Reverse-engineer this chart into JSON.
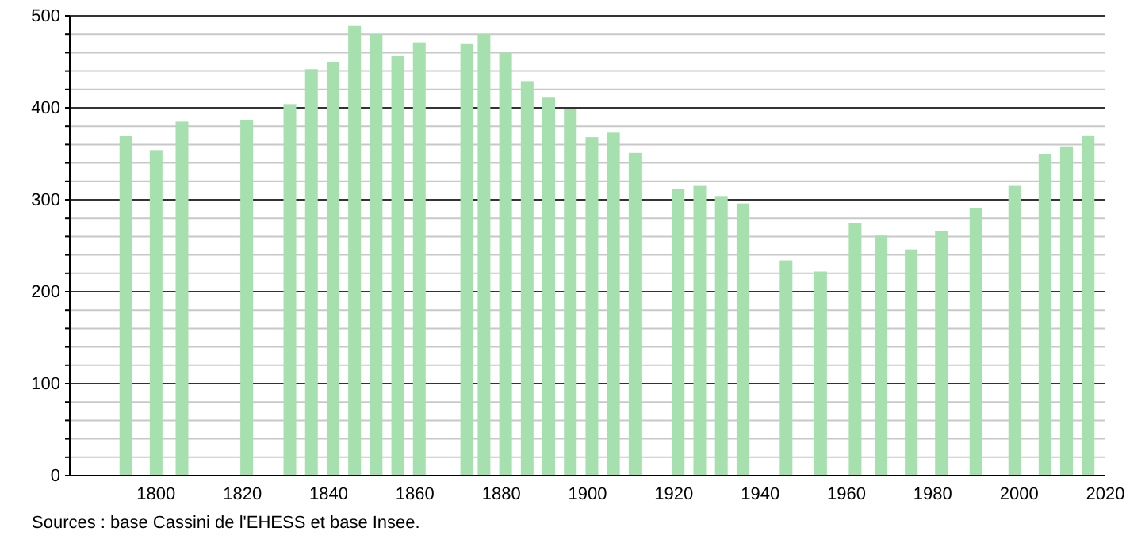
{
  "chart_data": {
    "type": "bar",
    "x": [
      1793,
      1800,
      1806,
      1821,
      1831,
      1836,
      1841,
      1846,
      1851,
      1856,
      1861,
      1872,
      1876,
      1881,
      1886,
      1891,
      1896,
      1901,
      1906,
      1911,
      1921,
      1926,
      1931,
      1936,
      1946,
      1954,
      1962,
      1968,
      1975,
      1982,
      1990,
      1999,
      2006,
      2011,
      2016
    ],
    "values": [
      369,
      354,
      385,
      387,
      404,
      442,
      450,
      489,
      480,
      456,
      471,
      470,
      480,
      460,
      429,
      411,
      399,
      368,
      373,
      351,
      312,
      315,
      304,
      296,
      234,
      222,
      275,
      261,
      246,
      266,
      291,
      315,
      350,
      358,
      370
    ],
    "color": "#a6e0ae",
    "xlim": [
      1780,
      2020
    ],
    "xticks": [
      1800,
      1820,
      1840,
      1860,
      1880,
      1900,
      1920,
      1940,
      1960,
      1980,
      2000,
      2020
    ],
    "ylim": [
      0,
      500
    ],
    "yticks": [
      0,
      {
        "value": 20,
        "label": null
      },
      {
        "value": 40,
        "label": null
      },
      {
        "value": 60,
        "label": null
      },
      {
        "value": 80,
        "label": null
      },
      100,
      {
        "value": 120,
        "label": null
      },
      {
        "value": 140,
        "label": null
      },
      {
        "value": 160,
        "label": null
      },
      {
        "value": 180,
        "label": null
      },
      200,
      {
        "value": 220,
        "label": null
      },
      {
        "value": 240,
        "label": null
      },
      {
        "value": 260,
        "label": null
      },
      {
        "value": 280,
        "label": null
      },
      300,
      {
        "value": 320,
        "label": null
      },
      {
        "value": 340,
        "label": null
      },
      {
        "value": 360,
        "label": null
      },
      {
        "value": 380,
        "label": null
      },
      400,
      {
        "value": 420,
        "label": null
      },
      {
        "value": 440,
        "label": null
      },
      {
        "value": 460,
        "label": null
      },
      {
        "value": 480,
        "label": null
      },
      500
    ],
    "grid": "y",
    "annotations": [
      "Sources : base Cassini de l'EHESS et base Insee."
    ]
  }
}
